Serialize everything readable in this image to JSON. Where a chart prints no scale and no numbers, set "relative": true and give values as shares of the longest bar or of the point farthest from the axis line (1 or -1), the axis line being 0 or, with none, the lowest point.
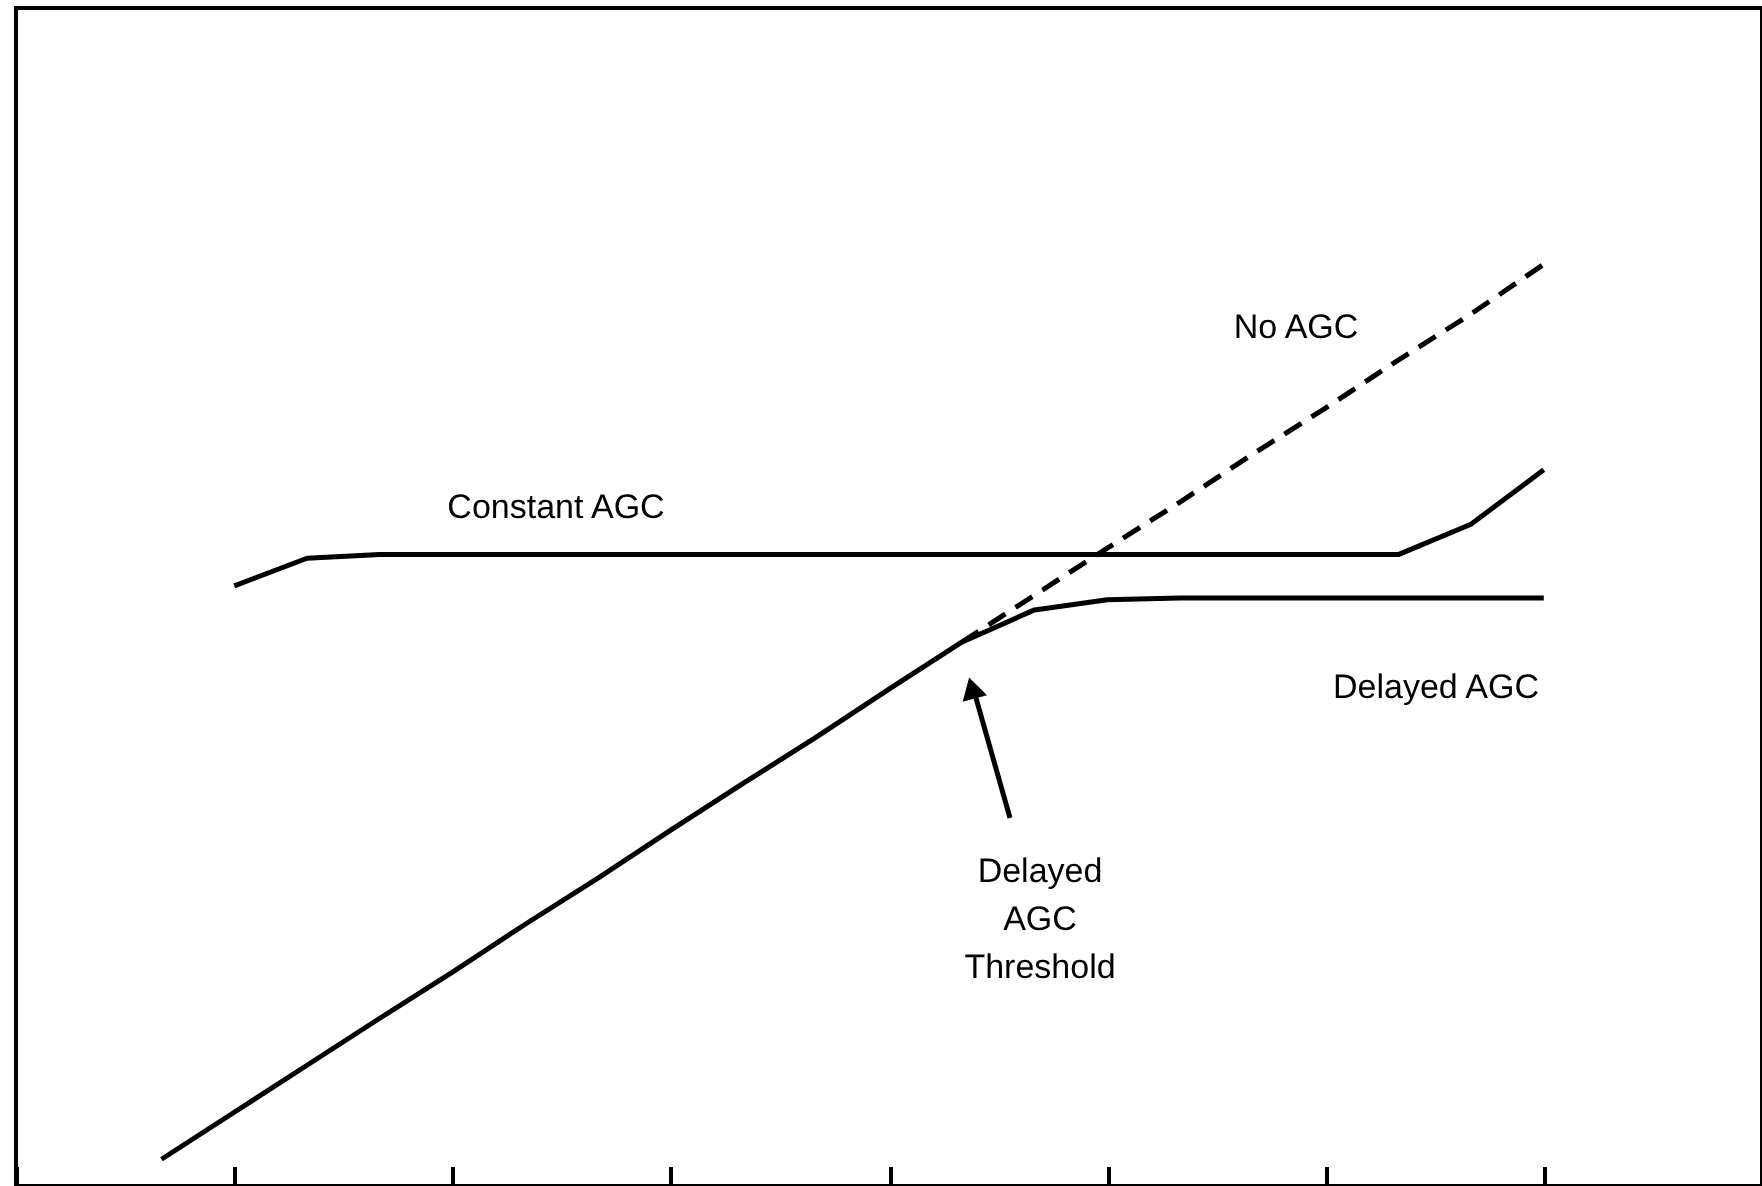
{
  "chart_data": {
    "type": "line",
    "relative": true,
    "categories": [
      null,
      null,
      null,
      null,
      null,
      null,
      null,
      null,
      null,
      null,
      null,
      null,
      null,
      null,
      null,
      null,
      null,
      null,
      null,
      null,
      null,
      null,
      null,
      null,
      null
    ],
    "series": [
      {
        "name": "Constant AGC",
        "color": "#000000",
        "line_style": "solid",
        "values": [
          null,
          null,
          null,
          0.651,
          0.681,
          0.685,
          0.685,
          0.685,
          0.685,
          0.685,
          0.685,
          0.685,
          0.685,
          0.685,
          0.685,
          0.685,
          0.685,
          0.685,
          0.685,
          0.685,
          0.718,
          0.777,
          null,
          null,
          null
        ]
      },
      {
        "name": "No AGC",
        "color": "#000000",
        "line_style": "dashed",
        "values": [
          null,
          null,
          null,
          null,
          null,
          null,
          null,
          null,
          null,
          null,
          null,
          null,
          null,
          0.59,
          0.641,
          0.692,
          0.742,
          0.794,
          0.844,
          0.896,
          0.946,
          1,
          null,
          null,
          null
        ]
      },
      {
        "name": "Delayed AGC",
        "color": "#000000",
        "line_style": "solid",
        "values": [
          null,
          null,
          0.029,
          0.08,
          0.131,
          0.182,
          0.232,
          0.284,
          0.334,
          0.386,
          0.437,
          0.487,
          0.539,
          0.59,
          0.625,
          0.636,
          0.638,
          0.638,
          0.638,
          0.638,
          0.638,
          0.638,
          null,
          null,
          null
        ]
      }
    ],
    "annotations": [
      "Delayed AGC Threshold"
    ]
  }
}
